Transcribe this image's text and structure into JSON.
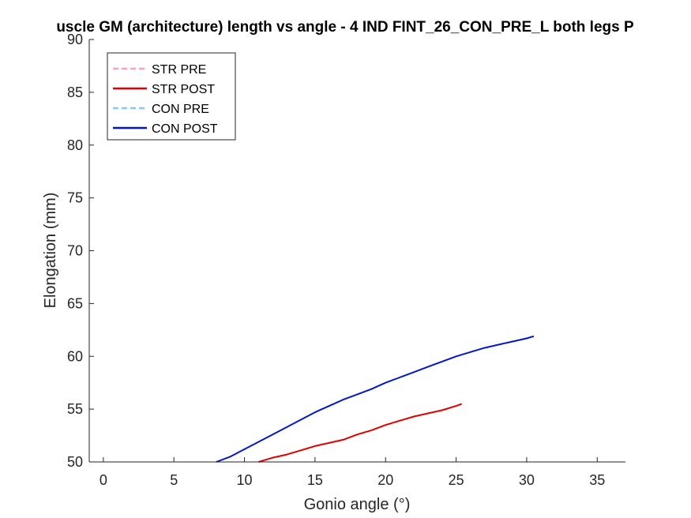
{
  "chart_data": {
    "type": "line",
    "title": "uscle GM (architecture) length vs angle - 4 IND FINT_26_CON_PRE_L both legs P",
    "xlabel": "Gonio angle (°)",
    "ylabel": "Elongation (mm)",
    "xlim": [
      -1,
      37
    ],
    "ylim": [
      50,
      90
    ],
    "x_ticks": [
      0,
      5,
      10,
      15,
      20,
      25,
      30,
      35
    ],
    "y_ticks": [
      50,
      55,
      60,
      65,
      70,
      75,
      80,
      85,
      90
    ],
    "x_tick_labels": [
      "0",
      "5",
      "10",
      "15",
      "20",
      "25",
      "30",
      "35"
    ],
    "y_tick_labels": [
      "50",
      "55",
      "60",
      "65",
      "70",
      "75",
      "80",
      "85",
      "90"
    ],
    "grid": false,
    "legend_position": "top-left",
    "series": [
      {
        "name": "STR PRE",
        "color": "#f7a1c4",
        "dash": "dashed",
        "x": [],
        "y": []
      },
      {
        "name": "STR POST",
        "color": "#e00000",
        "dash": "solid",
        "x": [
          11.0,
          11.5,
          12.0,
          13.0,
          14.0,
          15.0,
          16.0,
          17.0,
          18.0,
          19.0,
          20.0,
          21.0,
          22.0,
          23.0,
          24.0,
          25.0,
          25.4
        ],
        "y": [
          50.0,
          50.2,
          50.4,
          50.7,
          51.1,
          51.5,
          51.8,
          52.1,
          52.6,
          53.0,
          53.5,
          53.9,
          54.3,
          54.6,
          54.9,
          55.3,
          55.5
        ]
      },
      {
        "name": "CON PRE",
        "color": "#88c8e8",
        "dash": "dashed",
        "x": [],
        "y": []
      },
      {
        "name": "CON POST",
        "color": "#0018c8",
        "dash": "solid",
        "x": [
          8.0,
          9.0,
          10.0,
          11.0,
          12.0,
          13.0,
          14.0,
          15.0,
          16.0,
          17.0,
          18.0,
          19.0,
          20.0,
          21.0,
          22.0,
          23.0,
          24.0,
          25.0,
          26.0,
          27.0,
          28.0,
          29.0,
          30.0,
          30.5
        ],
        "y": [
          50.0,
          50.5,
          51.2,
          51.9,
          52.6,
          53.3,
          54.0,
          54.7,
          55.3,
          55.9,
          56.4,
          56.9,
          57.5,
          58.0,
          58.5,
          59.0,
          59.5,
          60.0,
          60.4,
          60.8,
          61.1,
          61.4,
          61.7,
          61.9
        ]
      }
    ]
  }
}
